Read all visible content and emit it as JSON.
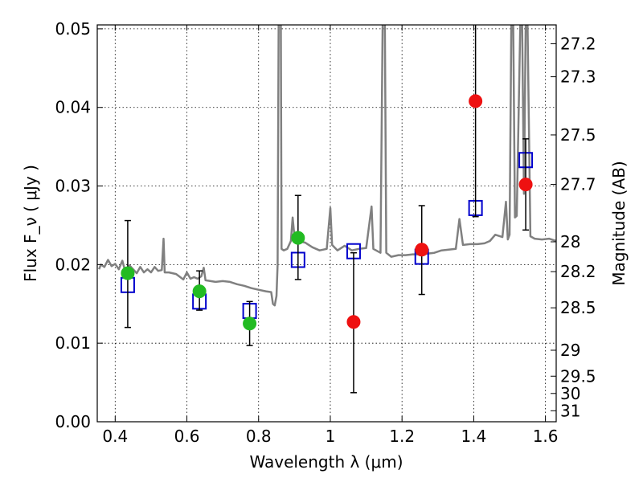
{
  "chart_data": {
    "type": "scatter",
    "title": "",
    "xlabel": "Wavelength  λ (μm)",
    "ylabel": "Flux  F_ν  ( μJy )",
    "ylabel_right": "Magnitude (AB)",
    "xlim": [
      0.35,
      1.63
    ],
    "ylim": [
      0.0,
      0.0505
    ],
    "grid": true,
    "x_ticks": [
      0.4,
      0.6,
      0.8,
      1.0,
      1.2,
      1.4,
      1.6
    ],
    "x_tick_labels": [
      "0.4",
      "0.6",
      "0.8",
      "1",
      "1.2",
      "1.4",
      "1.6"
    ],
    "y_ticks": [
      0.0,
      0.01,
      0.02,
      0.03,
      0.04,
      0.05
    ],
    "y_tick_labels": [
      "0.00",
      "0.01",
      "0.02",
      "0.03",
      "0.04",
      "0.05"
    ],
    "magnitude_ticks": [
      {
        "label": "27.2",
        "flux": 0.0481
      },
      {
        "label": "27.3",
        "flux": 0.0439
      },
      {
        "label": "27.5",
        "flux": 0.0365
      },
      {
        "label": "27.7",
        "flux": 0.0302
      },
      {
        "label": "28",
        "flux": 0.0229
      },
      {
        "label": "28.2",
        "flux": 0.0191
      },
      {
        "label": "28.5",
        "flux": 0.0145
      },
      {
        "label": "29",
        "flux": 0.0091
      },
      {
        "label": "29.5",
        "flux": 0.0058
      },
      {
        "label": "30",
        "flux": 0.0036
      },
      {
        "label": "31",
        "flux": 0.0014
      }
    ],
    "series": [
      {
        "kind": "model_spectrum",
        "color": "#808080",
        "points": [
          [
            0.355,
            0.0194
          ],
          [
            0.36,
            0.02
          ],
          [
            0.37,
            0.0197
          ],
          [
            0.38,
            0.0206
          ],
          [
            0.39,
            0.0198
          ],
          [
            0.4,
            0.0201
          ],
          [
            0.41,
            0.0194
          ],
          [
            0.42,
            0.0205
          ],
          [
            0.43,
            0.0188
          ],
          [
            0.44,
            0.0199
          ],
          [
            0.45,
            0.0194
          ],
          [
            0.46,
            0.0189
          ],
          [
            0.47,
            0.0197
          ],
          [
            0.48,
            0.019
          ],
          [
            0.49,
            0.0194
          ],
          [
            0.5,
            0.019
          ],
          [
            0.51,
            0.0197
          ],
          [
            0.52,
            0.0192
          ],
          [
            0.53,
            0.0193
          ],
          [
            0.535,
            0.0233
          ],
          [
            0.538,
            0.019
          ],
          [
            0.55,
            0.019
          ],
          [
            0.57,
            0.0188
          ],
          [
            0.59,
            0.0181
          ],
          [
            0.6,
            0.019
          ],
          [
            0.61,
            0.0182
          ],
          [
            0.62,
            0.0184
          ],
          [
            0.63,
            0.0182
          ],
          [
            0.64,
            0.0185
          ],
          [
            0.647,
            0.0196
          ],
          [
            0.652,
            0.018
          ],
          [
            0.68,
            0.0178
          ],
          [
            0.7,
            0.0179
          ],
          [
            0.72,
            0.0178
          ],
          [
            0.74,
            0.0175
          ],
          [
            0.76,
            0.0173
          ],
          [
            0.78,
            0.017
          ],
          [
            0.8,
            0.0168
          ],
          [
            0.82,
            0.0166
          ],
          [
            0.835,
            0.0165
          ],
          [
            0.84,
            0.015
          ],
          [
            0.845,
            0.0148
          ],
          [
            0.85,
            0.016
          ],
          [
            0.853,
            0.02
          ],
          [
            0.856,
            0.051
          ],
          [
            0.862,
            0.051
          ],
          [
            0.864,
            0.022
          ],
          [
            0.87,
            0.0218
          ],
          [
            0.88,
            0.022
          ],
          [
            0.89,
            0.023
          ],
          [
            0.895,
            0.026
          ],
          [
            0.9,
            0.0235
          ],
          [
            0.91,
            0.023
          ],
          [
            0.93,
            0.0228
          ],
          [
            0.95,
            0.0222
          ],
          [
            0.97,
            0.0218
          ],
          [
            0.99,
            0.022
          ],
          [
            1.0,
            0.0272
          ],
          [
            1.005,
            0.0225
          ],
          [
            1.02,
            0.0218
          ],
          [
            1.04,
            0.0224
          ],
          [
            1.06,
            0.0218
          ],
          [
            1.08,
            0.022
          ],
          [
            1.1,
            0.0221
          ],
          [
            1.115,
            0.0274
          ],
          [
            1.12,
            0.022
          ],
          [
            1.14,
            0.0215
          ],
          [
            1.146,
            0.051
          ],
          [
            1.152,
            0.051
          ],
          [
            1.156,
            0.0215
          ],
          [
            1.17,
            0.021
          ],
          [
            1.19,
            0.0212
          ],
          [
            1.21,
            0.0212
          ],
          [
            1.23,
            0.0213
          ],
          [
            1.25,
            0.0213
          ],
          [
            1.27,
            0.0214
          ],
          [
            1.29,
            0.0215
          ],
          [
            1.31,
            0.0218
          ],
          [
            1.33,
            0.0219
          ],
          [
            1.35,
            0.022
          ],
          [
            1.36,
            0.0258
          ],
          [
            1.37,
            0.0225
          ],
          [
            1.39,
            0.0226
          ],
          [
            1.41,
            0.0226
          ],
          [
            1.43,
            0.0227
          ],
          [
            1.445,
            0.023
          ],
          [
            1.46,
            0.0238
          ],
          [
            1.48,
            0.0235
          ],
          [
            1.49,
            0.028
          ],
          [
            1.495,
            0.0232
          ],
          [
            1.5,
            0.0238
          ],
          [
            1.505,
            0.051
          ],
          [
            1.51,
            0.051
          ],
          [
            1.515,
            0.026
          ],
          [
            1.52,
            0.0262
          ],
          [
            1.53,
            0.051
          ],
          [
            1.535,
            0.051
          ],
          [
            1.54,
            0.029
          ],
          [
            1.545,
            0.051
          ],
          [
            1.55,
            0.051
          ],
          [
            1.558,
            0.0236
          ],
          [
            1.57,
            0.0233
          ],
          [
            1.59,
            0.0232
          ],
          [
            1.61,
            0.0233
          ],
          [
            1.63,
            0.023
          ]
        ]
      },
      {
        "kind": "model_photometry",
        "marker": "open-square",
        "color": "#0000cc",
        "points": [
          [
            0.435,
            0.0174
          ],
          [
            0.635,
            0.0153
          ],
          [
            0.775,
            0.0141
          ],
          [
            0.91,
            0.0206
          ],
          [
            1.065,
            0.0217
          ],
          [
            1.255,
            0.021
          ],
          [
            1.405,
            0.0272
          ],
          [
            1.545,
            0.0333
          ]
        ]
      },
      {
        "kind": "observed_optical",
        "marker": "filled-circle",
        "color": "#22bb22",
        "points": [
          {
            "x": 0.435,
            "y": 0.0189,
            "err_lo": 0.012,
            "err_hi": 0.0256
          },
          {
            "x": 0.635,
            "y": 0.0166,
            "err_lo": 0.0142,
            "err_hi": 0.0192
          },
          {
            "x": 0.775,
            "y": 0.0125,
            "err_lo": 0.0097,
            "err_hi": 0.0153
          },
          {
            "x": 0.91,
            "y": 0.0234,
            "err_lo": 0.0181,
            "err_hi": 0.0288
          }
        ]
      },
      {
        "kind": "observed_infrared",
        "marker": "filled-circle",
        "color": "#ee1111",
        "points": [
          {
            "x": 1.065,
            "y": 0.0127,
            "err_lo": 0.0037,
            "err_hi": 0.0215
          },
          {
            "x": 1.255,
            "y": 0.0219,
            "err_lo": 0.0162,
            "err_hi": 0.0275
          },
          {
            "x": 1.405,
            "y": 0.0408,
            "err_lo": 0.0261,
            "err_hi": 0.051
          },
          {
            "x": 1.545,
            "y": 0.0302,
            "err_lo": 0.0244,
            "err_hi": 0.036
          }
        ]
      }
    ]
  }
}
